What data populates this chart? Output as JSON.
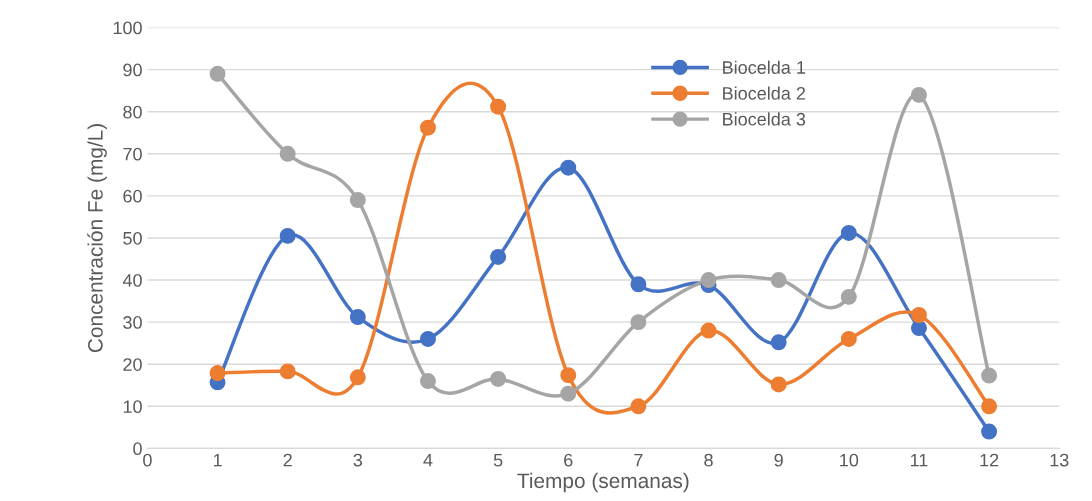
{
  "chart_data": {
    "type": "line",
    "xlabel": "Tiempo (semanas)",
    "ylabel": "Concentración Fe (mg/L)",
    "x": [
      1,
      2,
      3,
      4,
      5,
      6,
      7,
      8,
      9,
      10,
      11,
      12
    ],
    "series": [
      {
        "name": "Biocelda 1",
        "color": "#4472c4",
        "values": [
          15.7,
          50.5,
          31.2,
          26,
          45.5,
          66.7,
          39,
          38.8,
          25.2,
          51.2,
          28.6,
          4
        ]
      },
      {
        "name": "Biocelda 2",
        "color": "#ed7d31",
        "values": [
          17.9,
          18.3,
          16.9,
          76.2,
          81.2,
          17.4,
          10,
          28,
          15.2,
          26,
          31.7,
          10
        ]
      },
      {
        "name": "Biocelda 3",
        "color": "#a5a5a5",
        "values": [
          89,
          70,
          59,
          16,
          16.5,
          13,
          30,
          40,
          40,
          36,
          84,
          17.3
        ]
      }
    ],
    "xlim": [
      0,
      13
    ],
    "xticks": [
      0,
      1,
      2,
      3,
      4,
      5,
      6,
      7,
      8,
      9,
      10,
      11,
      12,
      13
    ],
    "ylim": [
      0,
      100
    ],
    "yticks": [
      0,
      10,
      20,
      30,
      40,
      50,
      60,
      70,
      80,
      90,
      100
    ],
    "grid": "y",
    "legend": "top right",
    "marker": "circle",
    "line_style": "solid"
  }
}
